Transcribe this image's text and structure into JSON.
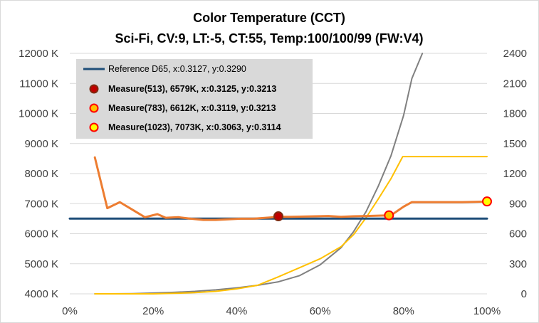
{
  "chart_data": {
    "type": "line",
    "title": "Color Temperature (CCT)",
    "subtitle": "Sci-Fi, CV:9, LT:-5, CT:55, Temp:100/100/99 (FW:V4)",
    "xlabel": "",
    "ylabel": "",
    "y2label": "",
    "xlim": [
      0,
      100
    ],
    "ylim": [
      4000,
      12000
    ],
    "y2lim": [
      0,
      2400
    ],
    "x_ticks": [
      "0%",
      "20%",
      "40%",
      "60%",
      "80%",
      "100%"
    ],
    "y_ticks": [
      "4000 K",
      "5000 K",
      "6000 K",
      "7000 K",
      "8000 K",
      "9000 K",
      "10000 K",
      "11000 K",
      "12000 K"
    ],
    "y2_ticks": [
      "0",
      "300",
      "600",
      "900",
      "1200",
      "1500",
      "1800",
      "2100",
      "2400"
    ],
    "grid": "horizontal",
    "legend_position": "top-left",
    "series": [
      {
        "name": "Reference D65, x:0.3127, y:0.3290",
        "axis": "left",
        "color": "#1f4e79",
        "x": [
          0,
          100
        ],
        "values": [
          6504,
          6504
        ]
      },
      {
        "name": "",
        "axis": "left",
        "color": "#ed7d31",
        "x": [
          6,
          9,
          12,
          15,
          18,
          21,
          23,
          26,
          29,
          32,
          35,
          38,
          41,
          44,
          47,
          50,
          53,
          56,
          59,
          62,
          65,
          68,
          71,
          74,
          77,
          80,
          82,
          85,
          88,
          91,
          94,
          97,
          100
        ],
        "values": [
          8540,
          6850,
          7050,
          6800,
          6550,
          6650,
          6530,
          6550,
          6500,
          6460,
          6460,
          6480,
          6500,
          6500,
          6530,
          6560,
          6560,
          6570,
          6580,
          6590,
          6560,
          6580,
          6590,
          6600,
          6612,
          6900,
          7050,
          7050,
          7050,
          7050,
          7050,
          7060,
          7073
        ]
      },
      {
        "name": "",
        "axis": "right",
        "color": "#808080",
        "x": [
          6,
          10,
          15,
          20,
          25,
          30,
          35,
          40,
          45,
          50,
          55,
          60,
          65,
          68,
          71,
          74,
          77,
          80,
          82,
          84.5
        ],
        "values": [
          0,
          0,
          2,
          8,
          15,
          25,
          40,
          60,
          85,
          120,
          180,
          290,
          460,
          620,
          820,
          1080,
          1380,
          1780,
          2150,
          2400
        ]
      },
      {
        "name": "",
        "axis": "right",
        "color": "#ffc000",
        "x": [
          6,
          10,
          15,
          20,
          25,
          30,
          35,
          40,
          45,
          50,
          55,
          60,
          65,
          68,
          71,
          74,
          77,
          79.8,
          85,
          90,
          95,
          100
        ],
        "values": [
          0,
          0,
          0,
          0,
          5,
          12,
          25,
          50,
          85,
          170,
          260,
          350,
          470,
          590,
          760,
          950,
          1150,
          1370,
          1370,
          1370,
          1370,
          1370
        ]
      }
    ],
    "markers": [
      {
        "name": "Measure(513), 6579K, x:0.3125, y:0.3213",
        "x": 50,
        "y": 6579,
        "fill": "#c00000",
        "stroke": "#7f2a10"
      },
      {
        "name": "Measure(783), 6612K, x:0.3119, y:0.3213",
        "x": 76.5,
        "y": 6612,
        "fill": "#ffc000",
        "stroke": "#ff0000"
      },
      {
        "name": "Measure(1023), 7073K, x:0.3063, y:0.3114",
        "x": 100,
        "y": 7073,
        "fill": "#ffff00",
        "stroke": "#ff0000"
      }
    ]
  }
}
